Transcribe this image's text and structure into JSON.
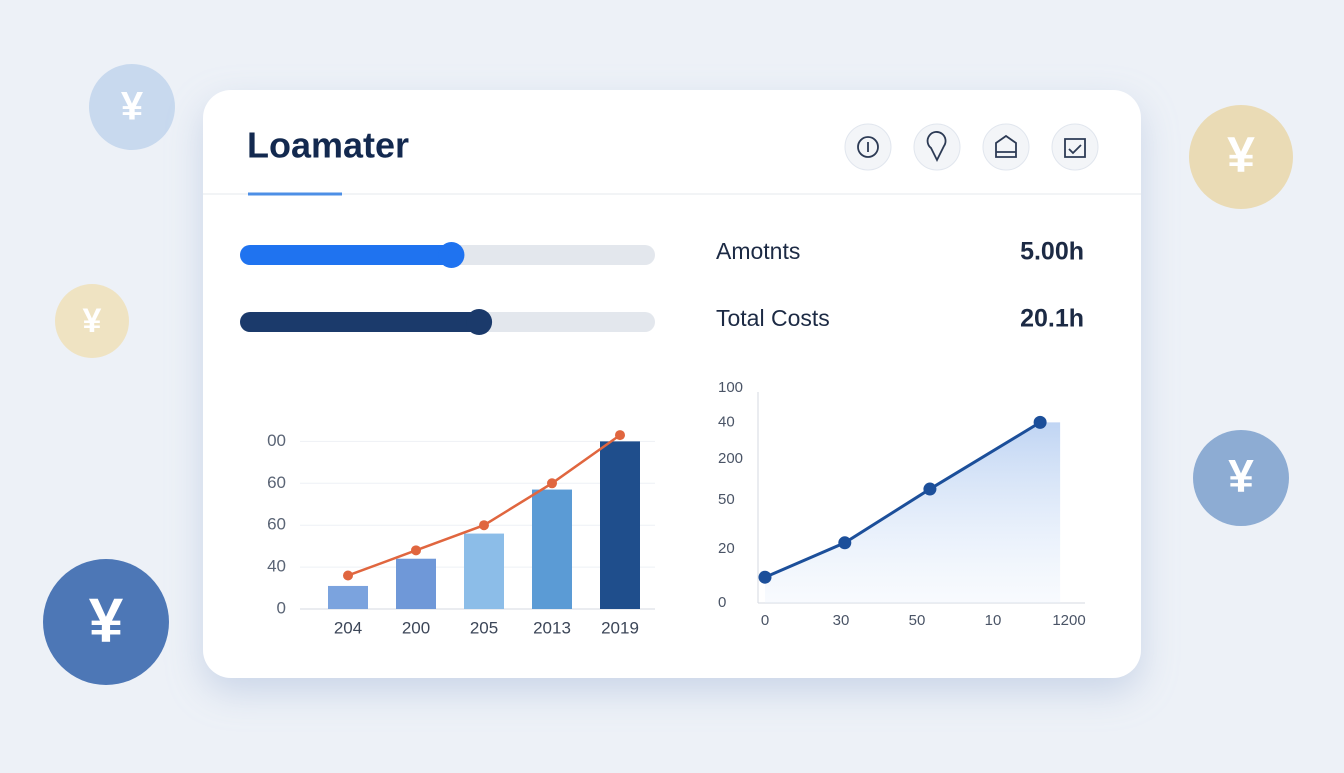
{
  "header": {
    "title": "Loamater"
  },
  "coins": [
    "¥",
    "¥",
    "¥",
    "¥",
    "¥"
  ],
  "sliders": [
    {
      "value": 51,
      "color": "#1f73f0"
    },
    {
      "value": 58,
      "color": "#1b3a6b"
    }
  ],
  "stats": [
    {
      "label": "Amotnts",
      "value": "5.00h"
    },
    {
      "label": "Total Costs",
      "value": "20.1h"
    }
  ],
  "chart_data": [
    {
      "type": "bar",
      "categories": [
        "204",
        "200",
        "205",
        "2013",
        "2019"
      ],
      "series": [
        {
          "type": "bar",
          "colors": [
            "#7ba3de",
            "#6f98d8",
            "#8cbde8",
            "#5b9bd5",
            "#1f4e8c"
          ],
          "values": [
            11,
            24,
            36,
            57,
            80
          ]
        },
        {
          "type": "line",
          "color": "#e0663f",
          "values": [
            16,
            28,
            40,
            60,
            83
          ]
        }
      ],
      "ylim": [
        0,
        84
      ],
      "yticks": [
        0,
        {
          "value": 20,
          "label": "40"
        },
        {
          "value": 40,
          "label": "60"
        },
        60,
        {
          "value": 80,
          "label": "00"
        }
      ],
      "grid": true
    },
    {
      "type": "area",
      "x": [
        0,
        1.05,
        2.17,
        3.62
      ],
      "values": [
        12,
        28,
        53,
        84
      ],
      "color": "#1c4f9a",
      "xlim": [
        0,
        4
      ],
      "xticks": [
        0,
        {
          "value": 1,
          "label": "30"
        },
        {
          "value": 2,
          "label": "50"
        },
        {
          "value": 3,
          "label": "10"
        },
        {
          "value": 4,
          "label": "1200"
        }
      ],
      "ylim": [
        0,
        100
      ],
      "yticks": [
        0,
        {
          "value": 25,
          "label": "20"
        },
        {
          "value": 48,
          "label": "50"
        },
        {
          "value": 67,
          "label": "200"
        },
        {
          "value": 84,
          "label": "40"
        },
        100
      ]
    }
  ]
}
